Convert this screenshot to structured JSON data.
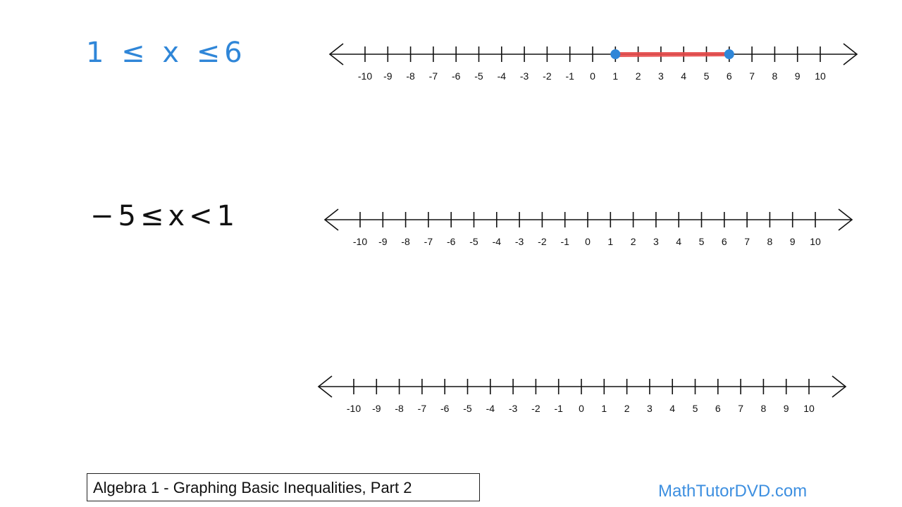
{
  "inequalities": [
    {
      "text": "1 ≤ x ≤6",
      "color": "#2f86d8"
    },
    {
      "text": "−5≤x<1",
      "color": "#111111"
    }
  ],
  "number_lines": [
    {
      "ticks": [
        -10,
        -9,
        -8,
        -7,
        -6,
        -5,
        -4,
        -3,
        -2,
        -1,
        0,
        1,
        2,
        3,
        4,
        5,
        6,
        7,
        8,
        9,
        10
      ],
      "shaded": {
        "from": 1,
        "to": 6,
        "left_closed": true,
        "right_closed": true,
        "shade_color": "#e84a4a",
        "point_color": "#2f86d8"
      }
    },
    {
      "ticks": [
        -10,
        -9,
        -8,
        -7,
        -6,
        -5,
        -4,
        -3,
        -2,
        -1,
        0,
        1,
        2,
        3,
        4,
        5,
        6,
        7,
        8,
        9,
        10
      ],
      "shaded": null
    },
    {
      "ticks": [
        -10,
        -9,
        -8,
        -7,
        -6,
        -5,
        -4,
        -3,
        -2,
        -1,
        0,
        1,
        2,
        3,
        4,
        5,
        6,
        7,
        8,
        9,
        10
      ],
      "shaded": null
    }
  ],
  "footer": {
    "title": "Algebra 1 - Graphing Basic Inequalities, Part 2",
    "brand": "MathTutorDVD.com",
    "brand_color": "#3d8fe0"
  }
}
